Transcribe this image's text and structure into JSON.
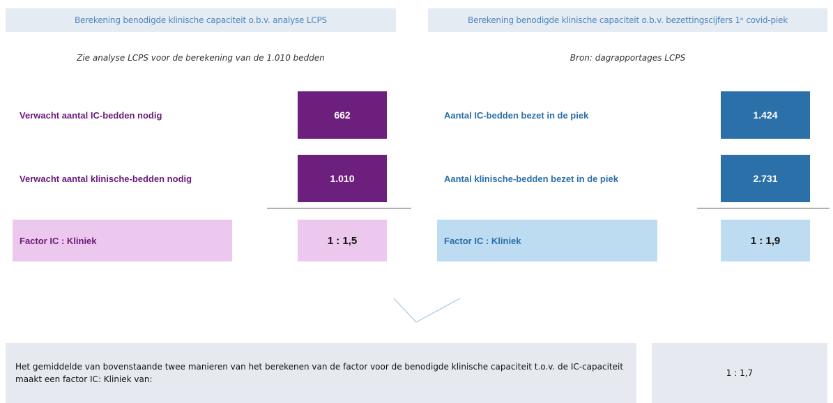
{
  "left": {
    "header": "Berekening benodigde klinische capaciteit o.b.v. analyse LCPS",
    "subtitle": "Zie analyse LCPS voor de berekening van de 1.010 bedden",
    "rows": [
      {
        "label": "Verwacht aantal IC-bedden nodig",
        "value": "662"
      },
      {
        "label": "Verwacht aantal klinische-bedden nodig",
        "value": "1.010"
      }
    ],
    "factor": {
      "label": "Factor IC : Kliniek",
      "value": "1 : 1,5"
    }
  },
  "right": {
    "header": "Berekening benodigde klinische capaciteit o.b.v. bezettingscijfers 1ᵉ covid-piek",
    "subtitle": "Bron: dagrapportages LCPS",
    "rows": [
      {
        "label": "Aantal IC-bedden bezet in de piek",
        "value": "1.424"
      },
      {
        "label": "Aantal klinische-bedden bezet in de piek",
        "value": "2.731"
      }
    ],
    "factor": {
      "label": "Factor IC : Kliniek",
      "value": "1 : 1,9"
    }
  },
  "conclusion": {
    "text": "Het gemiddelde van bovenstaande twee manieren van het berekenen van de factor voor de benodigde klinische capaciteit t.o.v. de IC-capaciteit maakt een factor IC: Kliniek van:",
    "value": "1 : 1,7"
  }
}
